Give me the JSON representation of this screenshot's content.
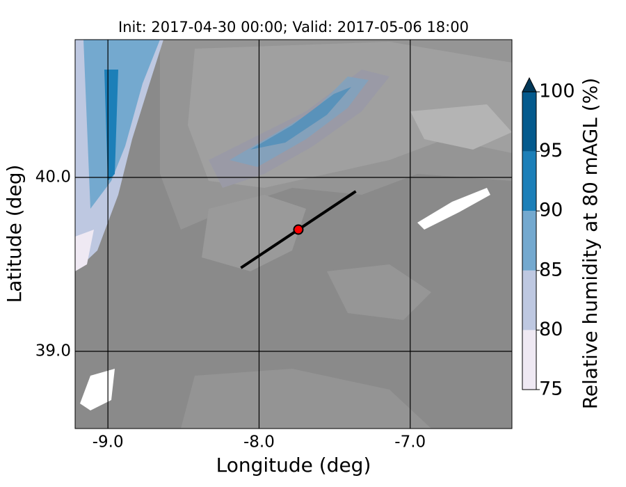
{
  "chart_data": {
    "type": "map",
    "title": "Init: 2017-04-30 00:00; Valid: 2017-05-06 18:00",
    "xlabel": "Longitude (deg)",
    "ylabel": "Latitude (deg)",
    "xlim": [
      -9.217,
      -6.327
    ],
    "ylim": [
      38.556,
      40.792
    ],
    "xticks": [
      {
        "value": -9,
        "label": "-9.0"
      },
      {
        "value": -8,
        "label": "-8.0"
      },
      {
        "value": -7,
        "label": "-7.0"
      }
    ],
    "yticks": [
      {
        "value": 39,
        "label": "39.0"
      },
      {
        "value": 40,
        "label": "40.0"
      }
    ],
    "grid": true,
    "colorbar": {
      "label": "Relative humidity at 80 mAGL (%)",
      "levels": [
        75,
        80,
        85,
        90,
        95,
        100
      ],
      "colors": [
        "#efe9f3",
        "#bec8e1",
        "#74a9cf",
        "#1c7fb8",
        "#045a8d"
      ],
      "extend_color": "#023858"
    },
    "transect": {
      "x": [
        -8.12,
        -7.36
      ],
      "y": [
        39.48,
        39.92
      ],
      "color": "#000000"
    },
    "point": {
      "x": -7.74,
      "y": 39.7,
      "color": "#ff0000"
    }
  }
}
